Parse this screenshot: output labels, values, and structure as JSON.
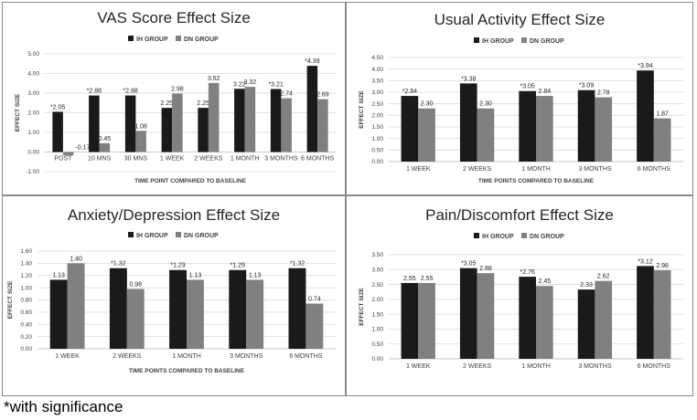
{
  "colors": {
    "ih": "#1a1a1a",
    "dn": "#808080"
  },
  "footnote": "*with significance",
  "chart_data": [
    {
      "type": "bar",
      "title": "VAS Score Effect Size",
      "xlabel": "TIME POINT COMPARED TO BASELINE",
      "ylabel": "EFFECT SIZE",
      "ylim": [
        -1.0,
        5.0
      ],
      "ytick_step": 1.0,
      "ytick_decimals": 2,
      "ytick_labels": [
        "-1.00",
        "0.00",
        "1.00",
        "2.00",
        "3.00",
        "4.00",
        "5.00"
      ],
      "categories": [
        "POST",
        "10 MNS",
        "30 MNS",
        "1 WEEK",
        "2 WEEKS",
        "1 MONTH",
        "3 MONTHS",
        "6 MONTHS"
      ],
      "series": [
        {
          "name": "IH GROUP",
          "values": [
            2.05,
            2.88,
            2.88,
            2.25,
            2.25,
            3.22,
            3.21,
            4.39
          ],
          "labels": [
            "*2.05",
            "*2.88",
            "*2.88",
            "2.25",
            "2.25",
            "3.22",
            "*3.21",
            "*4.39"
          ]
        },
        {
          "name": "DN GROUP",
          "values": [
            -0.17,
            0.45,
            1.08,
            2.98,
            3.52,
            3.32,
            2.74,
            2.69
          ],
          "labels": [
            "-0.17",
            "0.45",
            "1.08",
            "2.98",
            "3.52",
            "3.32",
            "2.74",
            "2.69"
          ]
        }
      ],
      "legend": "top"
    },
    {
      "type": "bar",
      "title": "Usual Activity Effect Size",
      "xlabel": "TIME POINTS COMPARED TO BASELINE",
      "ylabel": "EFFECT SIZE",
      "ylim": [
        0.0,
        4.5
      ],
      "ytick_step": 0.5,
      "ytick_decimals": 2,
      "ytick_labels": [
        "0.00",
        "0.50",
        "1.00",
        "1.50",
        "2.00",
        "2.50",
        "3.00",
        "3.50",
        "4.00",
        "4.50"
      ],
      "categories": [
        "1 WEEK",
        "2 WEEKS",
        "1 MONTH",
        "3 MONTHS",
        "6 MONTHS"
      ],
      "series": [
        {
          "name": "IH GROUP",
          "values": [
            2.84,
            3.38,
            3.05,
            3.09,
            3.94
          ],
          "labels": [
            "*2.84",
            "*3.38",
            "*3.05",
            "*3.09",
            "*3.94"
          ]
        },
        {
          "name": "DN GROUP",
          "values": [
            2.3,
            2.3,
            2.84,
            2.78,
            1.87
          ],
          "labels": [
            "2.30",
            "2.30",
            "2.84",
            "2.78",
            "1.87"
          ]
        }
      ],
      "legend": "top"
    },
    {
      "type": "bar",
      "title": "Anxiety/Depression Effect Size",
      "xlabel": "TIME POINTS COMPARED TO BASELINE",
      "ylabel": "EFFECT SIZE",
      "ylim": [
        0.0,
        1.6
      ],
      "ytick_step": 0.2,
      "ytick_decimals": 2,
      "ytick_labels": [
        "0.00",
        "0.20",
        "0.40",
        "0.60",
        "0.80",
        "1.00",
        "1.20",
        "1.40",
        "1.60"
      ],
      "categories": [
        "1 WEEK",
        "2 WEEKS",
        "1 MONTH",
        "3 MONTHS",
        "6 MONTHS"
      ],
      "series": [
        {
          "name": "IH GROUP",
          "values": [
            1.13,
            1.32,
            1.29,
            1.29,
            1.32
          ],
          "labels": [
            "1.13",
            "*1.32",
            "*1.29",
            "*1.29",
            "*1.32"
          ]
        },
        {
          "name": "DN GROUP",
          "values": [
            1.4,
            0.98,
            1.13,
            1.13,
            0.74
          ],
          "labels": [
            "1.40",
            "0.98",
            "1.13",
            "1.13",
            "0.74"
          ]
        }
      ],
      "legend": "top"
    },
    {
      "type": "bar",
      "title": "Pain/Discomfort Effect Size",
      "xlabel": "",
      "ylabel": "EFFECT SIZE",
      "ylim": [
        0.0,
        3.5
      ],
      "ytick_step": 0.5,
      "ytick_decimals": 2,
      "ytick_labels": [
        "0.00",
        "0.50",
        "1.00",
        "1.50",
        "2.00",
        "2.50",
        "3.00",
        "3.50"
      ],
      "categories": [
        "1 WEEK",
        "2 WEEKS",
        "1 MONTH",
        "3 MONTHS",
        "6 MONTHS"
      ],
      "series": [
        {
          "name": "IH GROUP",
          "values": [
            2.55,
            3.05,
            2.76,
            2.33,
            3.12
          ],
          "labels": [
            "2.55",
            "*3.05",
            "*2.76",
            "2.33",
            "*3.12"
          ]
        },
        {
          "name": "DN GROUP",
          "values": [
            2.55,
            2.88,
            2.45,
            2.62,
            2.98
          ],
          "labels": [
            "2.55",
            "2.88",
            "2.45",
            "2.62",
            "2.98"
          ]
        }
      ],
      "legend": "top"
    }
  ]
}
